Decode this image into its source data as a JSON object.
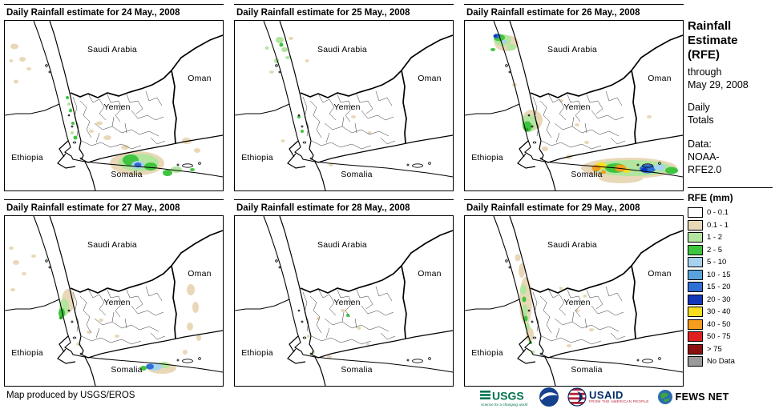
{
  "map_labels": {
    "saudi_arabia": "Saudi Arabia",
    "oman": "Oman",
    "yemen": "Yemen",
    "ethiopia": "Ethiopia",
    "somalia": "Somalia"
  },
  "panels": [
    {
      "title": "Daily Rainfall estimate for 24 May., 2008",
      "rain_cells": [
        [
          12,
          32,
          5,
          3.5,
          "tan"
        ],
        [
          22,
          48,
          4,
          3,
          "tan"
        ],
        [
          14,
          76,
          3,
          2.5,
          "tan"
        ],
        [
          30,
          60,
          3,
          2,
          "tan"
        ],
        [
          8,
          50,
          2.5,
          2,
          "tan"
        ],
        [
          78,
          96,
          2,
          2,
          "green"
        ],
        [
          80,
          104,
          2,
          2,
          "lgreen"
        ],
        [
          82,
          112,
          2,
          2.5,
          "green"
        ],
        [
          85,
          128,
          2,
          2,
          "green"
        ],
        [
          88,
          146,
          2.5,
          2.5,
          "green"
        ],
        [
          84,
          140,
          2,
          2,
          "lgreen"
        ],
        [
          118,
          128,
          4,
          2.5,
          "tan"
        ],
        [
          128,
          146,
          5,
          3,
          "tan"
        ],
        [
          108,
          138,
          3,
          2,
          "tan"
        ],
        [
          150,
          158,
          5,
          3,
          "tan"
        ],
        [
          165,
          178,
          34,
          15,
          "tan"
        ],
        [
          167,
          177,
          25,
          11,
          "lgreen"
        ],
        [
          157,
          174,
          10,
          7,
          "green"
        ],
        [
          182,
          182,
          8,
          5,
          "green"
        ],
        [
          166,
          180,
          8,
          5,
          "lblue"
        ],
        [
          166,
          180,
          4.5,
          3,
          "blue"
        ],
        [
          203,
          190,
          6,
          4,
          "green"
        ],
        [
          214,
          186,
          7,
          4,
          "lgreen"
        ],
        [
          227,
          150,
          6,
          4,
          "tan"
        ],
        [
          240,
          162,
          4,
          3,
          "tan"
        ],
        [
          234,
          186,
          3,
          2,
          "green"
        ]
      ]
    },
    {
      "title": "Daily Rainfall estimate for 25 May., 2008",
      "rain_cells": [
        [
          56,
          24,
          5,
          4,
          "lgreen"
        ],
        [
          62,
          36,
          4,
          3,
          "lgreen"
        ],
        [
          52,
          50,
          3,
          3,
          "lgreen"
        ],
        [
          66,
          46,
          3,
          2,
          "lgreen"
        ],
        [
          40,
          34,
          2.5,
          2,
          "lgreen"
        ],
        [
          58,
          30,
          2.5,
          2.5,
          "green"
        ],
        [
          70,
          22,
          3,
          2,
          "tan"
        ],
        [
          46,
          64,
          3,
          2,
          "tan"
        ],
        [
          148,
          120,
          3,
          2,
          "tan"
        ],
        [
          168,
          140,
          2.5,
          2,
          "tan"
        ],
        [
          120,
          180,
          3,
          2,
          "tan"
        ],
        [
          60,
          150,
          2.5,
          2,
          "tan"
        ],
        [
          90,
          50,
          2.5,
          2,
          "tan"
        ],
        [
          80,
          120,
          2,
          2,
          "green"
        ],
        [
          84,
          138,
          2,
          2,
          "green"
        ]
      ]
    },
    {
      "title": "Daily Rainfall estimate for 26 May., 2008",
      "rain_cells": [
        [
          52,
          28,
          15,
          10,
          "tan"
        ],
        [
          47,
          24,
          11,
          7,
          "lgreen"
        ],
        [
          43,
          21,
          7,
          4.5,
          "green"
        ],
        [
          40,
          19,
          4.5,
          3,
          "blue"
        ],
        [
          38,
          19,
          2.2,
          1.8,
          "dblue"
        ],
        [
          49,
          26,
          3,
          2.2,
          "lblue"
        ],
        [
          58,
          33,
          6,
          4,
          "lgreen"
        ],
        [
          35,
          36,
          3,
          2,
          "green"
        ],
        [
          84,
          124,
          13,
          13,
          "tan"
        ],
        [
          80,
          128,
          9,
          11,
          "lgreen"
        ],
        [
          78,
          132,
          5.5,
          6.5,
          "green"
        ],
        [
          77,
          136,
          2.5,
          2.5,
          "dgreen"
        ],
        [
          120,
          100,
          3,
          2,
          "tan"
        ],
        [
          140,
          130,
          3,
          2,
          "tan"
        ],
        [
          62,
          80,
          3,
          2,
          "tan"
        ],
        [
          100,
          160,
          4,
          3,
          "tan"
        ],
        [
          130,
          170,
          4,
          3,
          "tan"
        ],
        [
          152,
          152,
          3,
          2,
          "tan"
        ],
        [
          230,
          120,
          3,
          2,
          "tan"
        ],
        [
          205,
          184,
          60,
          13,
          "tan"
        ],
        [
          195,
          196,
          28,
          7,
          "tan"
        ],
        [
          208,
          184,
          50,
          10,
          "lgreen"
        ],
        [
          188,
          184,
          13,
          6,
          "green"
        ],
        [
          258,
          187,
          8,
          4.5,
          "green"
        ],
        [
          170,
          181,
          7,
          4.5,
          "yellow"
        ],
        [
          202,
          187,
          4.5,
          3,
          "yellow"
        ],
        [
          164,
          184,
          5.5,
          4,
          "orange"
        ],
        [
          194,
          184,
          7,
          4.5,
          "orange"
        ],
        [
          173,
          189,
          3,
          2.5,
          "orange"
        ],
        [
          228,
          185,
          10,
          5.5,
          "blue"
        ],
        [
          224,
          186,
          4,
          2.5,
          "dblue"
        ],
        [
          243,
          183,
          7,
          4,
          "lblue"
        ]
      ]
    },
    {
      "title": "Daily Rainfall estimate for 27 May., 2008",
      "rain_cells": [
        [
          79,
          106,
          8,
          15,
          "tan"
        ],
        [
          74,
          114,
          6,
          11,
          "lgreen"
        ],
        [
          71,
          121,
          4,
          6,
          "green"
        ],
        [
          70,
          127,
          2,
          2,
          "dgreen"
        ],
        [
          14,
          58,
          4,
          3,
          "tan"
        ],
        [
          24,
          72,
          3,
          2,
          "tan"
        ],
        [
          10,
          92,
          3,
          2,
          "tan"
        ],
        [
          36,
          50,
          3,
          2,
          "tan"
        ],
        [
          8,
          40,
          3,
          2,
          "tan"
        ],
        [
          232,
          92,
          5,
          7,
          "tan"
        ],
        [
          238,
          114,
          4,
          7,
          "tan"
        ],
        [
          231,
          138,
          4,
          5,
          "tan"
        ],
        [
          242,
          152,
          3,
          4,
          "tan"
        ],
        [
          225,
          170,
          3,
          3,
          "tan"
        ],
        [
          120,
          130,
          3,
          2,
          "tan"
        ],
        [
          140,
          150,
          3,
          2,
          "tan"
        ],
        [
          105,
          145,
          3,
          2,
          "tan"
        ],
        [
          92,
          160,
          3,
          2,
          "tan"
        ],
        [
          196,
          190,
          18,
          7,
          "tan"
        ],
        [
          199,
          186,
          7,
          4,
          "lgreen"
        ],
        [
          187,
          188,
          9,
          5,
          "lblue"
        ],
        [
          181,
          188,
          5,
          3.5,
          "blue"
        ],
        [
          173,
          190,
          4,
          3,
          "green"
        ]
      ]
    },
    {
      "title": "Daily Rainfall estimate for 28 May., 2008",
      "rain_cells": [
        [
          135,
          118,
          3,
          2,
          "tan"
        ],
        [
          155,
          140,
          2.5,
          2,
          "tan"
        ],
        [
          118,
          176,
          3,
          2,
          "tan"
        ],
        [
          166,
          160,
          2,
          2,
          "tan"
        ],
        [
          92,
          150,
          2,
          2,
          "tan"
        ],
        [
          104,
          128,
          2,
          2,
          "tan"
        ],
        [
          141,
          124,
          2,
          2,
          "green"
        ],
        [
          98,
          170,
          2,
          2,
          "lgreen"
        ]
      ]
    },
    {
      "title": "Daily Rainfall estimate for 29 May., 2008",
      "rain_cells": [
        [
          76,
          106,
          8,
          30,
          "tan"
        ],
        [
          71,
          68,
          4,
          9,
          "tan"
        ],
        [
          81,
          148,
          5,
          9,
          "tan"
        ],
        [
          66,
          52,
          3.5,
          4.5,
          "tan"
        ],
        [
          73,
          92,
          4,
          6,
          "lgreen"
        ],
        [
          75,
          118,
          3.5,
          8,
          "lgreen"
        ],
        [
          78,
          138,
          3,
          5,
          "lgreen"
        ],
        [
          85,
          170,
          2.5,
          2,
          "lgreen"
        ],
        [
          74,
          104,
          2.5,
          3.5,
          "green"
        ],
        [
          76,
          128,
          2.5,
          3.5,
          "green"
        ],
        [
          82,
          158,
          2,
          2,
          "green"
        ],
        [
          140,
          118,
          3,
          2,
          "tan"
        ],
        [
          158,
          142,
          3,
          2,
          "tan"
        ],
        [
          130,
          162,
          3,
          2,
          "tan"
        ],
        [
          120,
          90,
          2.5,
          2,
          "tan"
        ],
        [
          150,
          100,
          2.5,
          2,
          "tan"
        ]
      ]
    }
  ],
  "sidebar": {
    "title": "Rainfall\nEstimate\n(RFE)",
    "subtitle": "through\nMay 29, 2008",
    "period": "Daily\nTotals",
    "source": "Data:\nNOAA-\nRFE2.0",
    "legend_title": "RFE (mm)",
    "legend": [
      {
        "label": "0 - 0.1",
        "color": "#ffffff"
      },
      {
        "label": "0.1 - 1",
        "color": "#e8d8b8"
      },
      {
        "label": "1 - 2",
        "color": "#b2e59e"
      },
      {
        "label": "2 - 5",
        "color": "#3fc43f"
      },
      {
        "label": "5 - 10",
        "color": "#a6d2ee"
      },
      {
        "label": "10 - 15",
        "color": "#5aa2dc"
      },
      {
        "label": "15 - 20",
        "color": "#2e6fd4"
      },
      {
        "label": "20 - 30",
        "color": "#1237b8"
      },
      {
        "label": "30 - 40",
        "color": "#f7df20"
      },
      {
        "label": "40 - 50",
        "color": "#f79d1e"
      },
      {
        "label": "50 - 75",
        "color": "#e02020"
      },
      {
        "label": "> 75",
        "color": "#8c1010"
      },
      {
        "label": "No Data",
        "color": "#9a9a9a"
      }
    ]
  },
  "footer": {
    "credit": "Map produced by USGS/EROS",
    "logos": {
      "usgs": "USGS",
      "usgs_tagline": "science for a changing world",
      "usaid": "USAID",
      "usaid_tagline": "FROM THE AMERICAN PEOPLE",
      "fewsnet": "FEWS NET"
    }
  },
  "colors": {
    "tan": "#e8d8b8",
    "lgreen": "#b2e59e",
    "green": "#3fc43f",
    "dgreen": "#1f9f1f",
    "lblue": "#a6d2ee",
    "mblue": "#5aa2dc",
    "blue": "#2e6fd4",
    "dblue": "#1237b8",
    "yellow": "#f7df20",
    "orange": "#f79d1e",
    "red": "#e02020",
    "darkred": "#8c1010"
  }
}
